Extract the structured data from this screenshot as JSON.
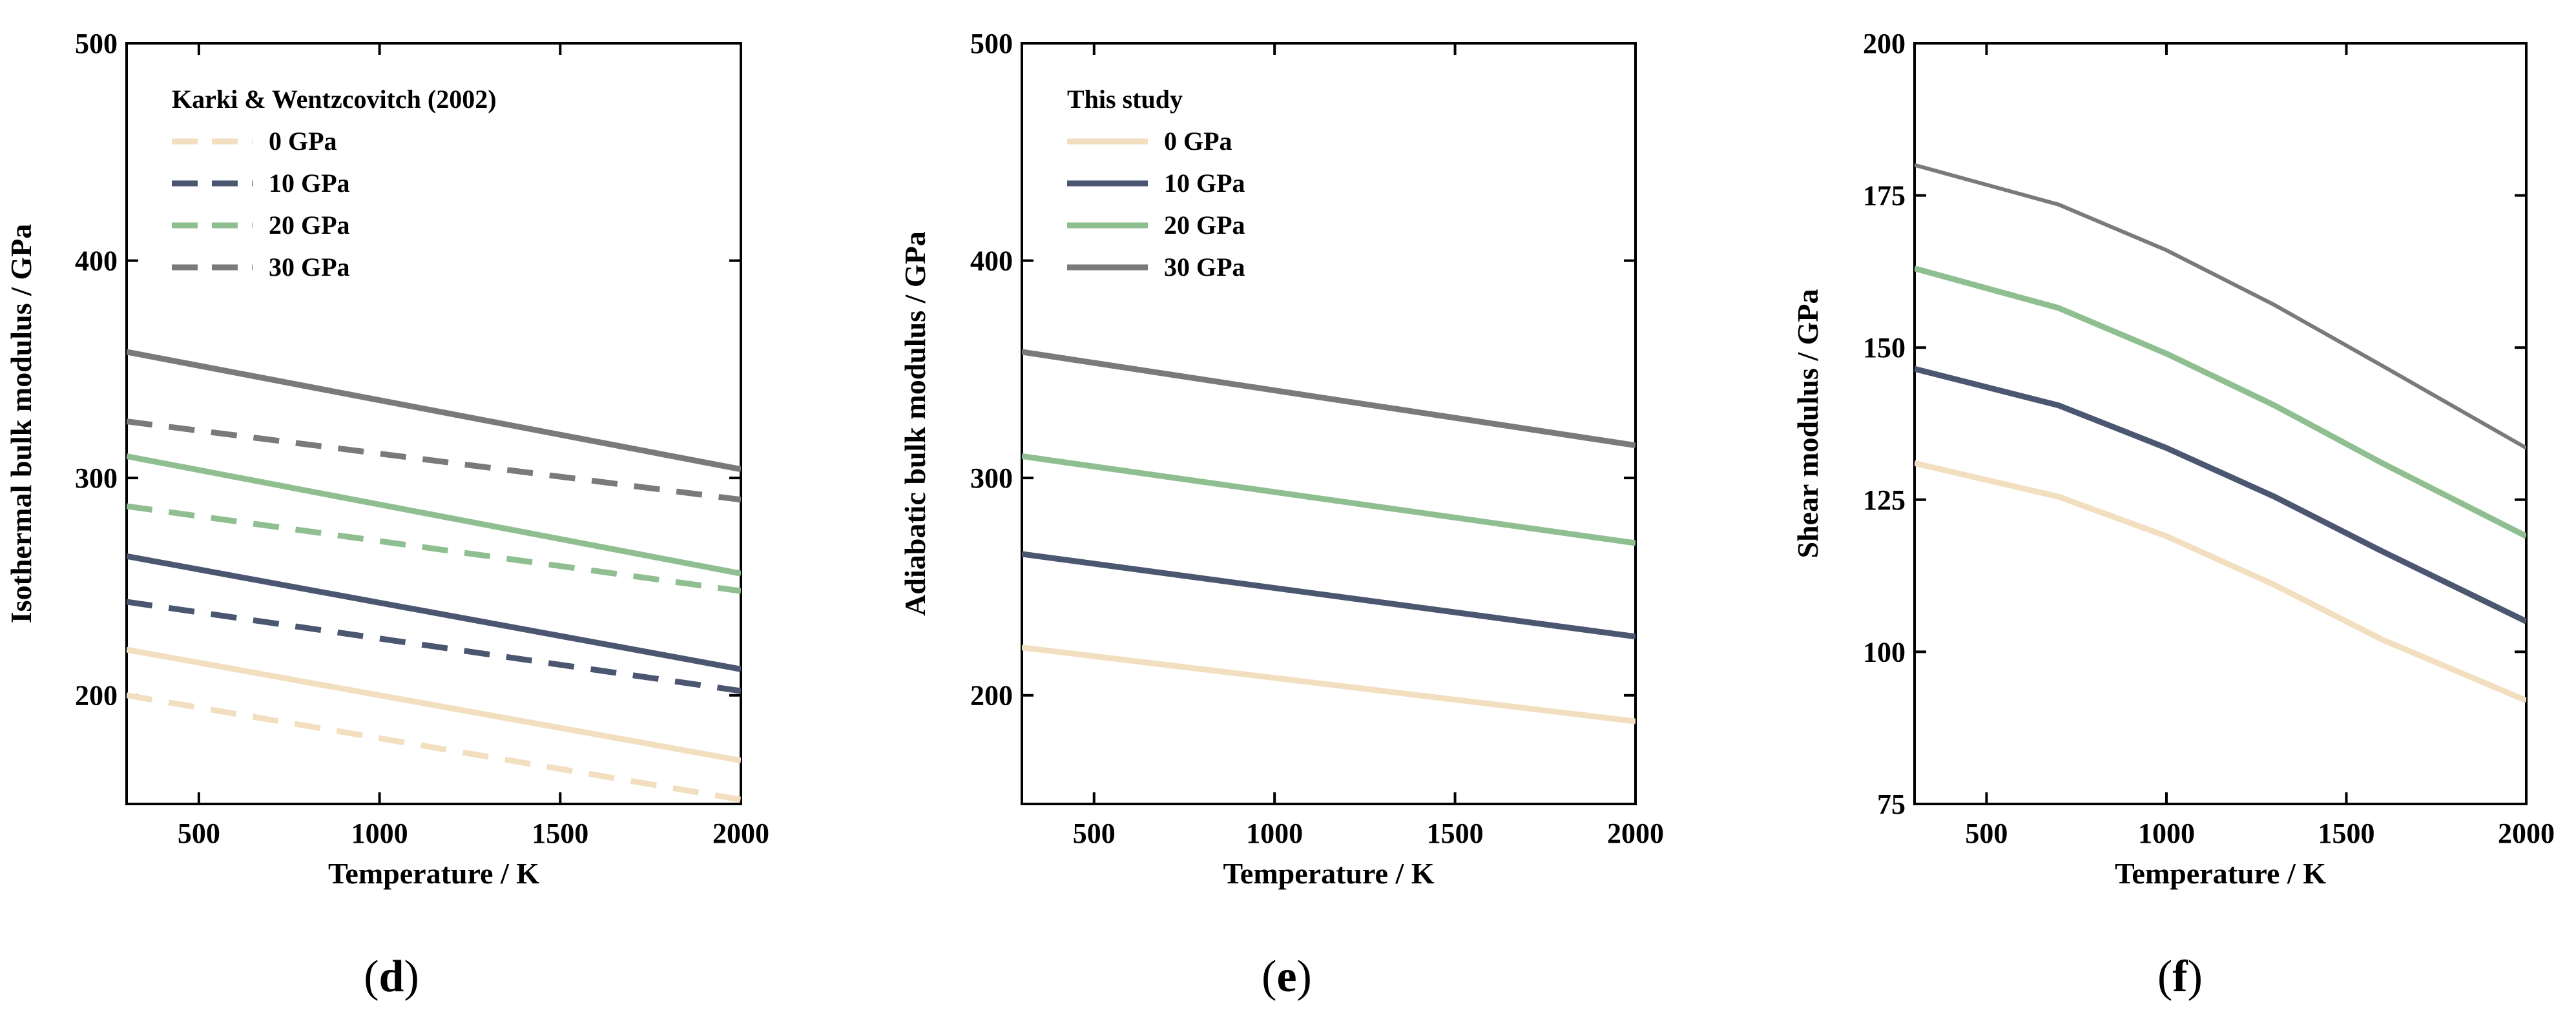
{
  "chart_data": [
    {
      "type": "line",
      "panel": "(d)",
      "panel_letter": "d",
      "xlabel": "Temperature / K",
      "ylabel": "Isothermal bulk modulus / GPa",
      "xlim": [
        300,
        2000
      ],
      "ylim": [
        150,
        500
      ],
      "xticks": [
        500,
        1000,
        1500,
        2000
      ],
      "yticks": [
        200,
        300,
        400,
        500
      ],
      "legend_title": "Karki & Wentzcovitch (2002)",
      "legend_dashed": true,
      "series": [
        {
          "name": "0 GPa",
          "style": "solid",
          "color": "#f2dfc0",
          "x": [
            300,
            2000
          ],
          "y": [
            221,
            170
          ],
          "in_legend": false
        },
        {
          "name": "10 GPa",
          "style": "solid",
          "color": "#4b5670",
          "x": [
            300,
            2000
          ],
          "y": [
            264,
            212
          ],
          "in_legend": false
        },
        {
          "name": "20 GPa",
          "style": "solid",
          "color": "#8fbf90",
          "x": [
            300,
            2000
          ],
          "y": [
            310,
            256
          ],
          "in_legend": false
        },
        {
          "name": "30 GPa",
          "style": "solid",
          "color": "#7a7a7a",
          "x": [
            300,
            2000
          ],
          "y": [
            358,
            304
          ],
          "in_legend": false
        },
        {
          "name": "0 GPa",
          "style": "dashed",
          "color": "#f2dfc0",
          "x": [
            300,
            2000
          ],
          "y": [
            200,
            152
          ],
          "in_legend": true
        },
        {
          "name": "10 GPa",
          "style": "dashed",
          "color": "#4b5670",
          "x": [
            300,
            2000
          ],
          "y": [
            243,
            202
          ],
          "in_legend": true
        },
        {
          "name": "20 GPa",
          "style": "dashed",
          "color": "#8fbf90",
          "x": [
            300,
            2000
          ],
          "y": [
            287,
            248
          ],
          "in_legend": true
        },
        {
          "name": "30 GPa",
          "style": "dashed",
          "color": "#7a7a7a",
          "x": [
            300,
            2000
          ],
          "y": [
            326,
            290
          ],
          "in_legend": true
        }
      ]
    },
    {
      "type": "line",
      "panel": "(e)",
      "panel_letter": "e",
      "xlabel": "Temperature / K",
      "ylabel": "Adiabatic bulk modulus / GPa",
      "xlim": [
        300,
        2000
      ],
      "ylim": [
        150,
        500
      ],
      "xticks": [
        500,
        1000,
        1500,
        2000
      ],
      "yticks": [
        200,
        300,
        400,
        500
      ],
      "legend_title": "This study",
      "legend_dashed": false,
      "series": [
        {
          "name": "0 GPa",
          "style": "solid",
          "color": "#f2dfc0",
          "x": [
            300,
            2000
          ],
          "y": [
            222,
            188
          ],
          "in_legend": true
        },
        {
          "name": "10 GPa",
          "style": "solid",
          "color": "#4b5670",
          "x": [
            300,
            2000
          ],
          "y": [
            265,
            227
          ],
          "in_legend": true
        },
        {
          "name": "20 GPa",
          "style": "solid",
          "color": "#8fbf90",
          "x": [
            300,
            2000
          ],
          "y": [
            310,
            270
          ],
          "in_legend": true
        },
        {
          "name": "30 GPa",
          "style": "solid",
          "color": "#7a7a7a",
          "x": [
            300,
            2000
          ],
          "y": [
            358,
            315
          ],
          "in_legend": true
        }
      ]
    },
    {
      "type": "line",
      "panel": "(f)",
      "panel_letter": "f",
      "xlabel": "Temperature / K",
      "ylabel": "Shear modulus / GPa",
      "xlim": [
        300,
        2000
      ],
      "ylim": [
        75,
        200
      ],
      "xticks": [
        500,
        1000,
        1500,
        2000
      ],
      "yticks": [
        75,
        100,
        125,
        150,
        175,
        200
      ],
      "legend_title": "",
      "legend_dashed": false,
      "series": [
        {
          "name": "0 GPa",
          "style": "solid",
          "color": "#f2dfc0",
          "x": [
            300,
            700,
            1000,
            1300,
            1600,
            2000
          ],
          "y": [
            131,
            125.5,
            119,
            111,
            102,
            92
          ],
          "in_legend": false
        },
        {
          "name": "10 GPa",
          "style": "solid",
          "color": "#4b5670",
          "x": [
            300,
            700,
            1000,
            1300,
            1600,
            2000
          ],
          "y": [
            146.5,
            140.5,
            133.5,
            125.5,
            116.5,
            105
          ],
          "in_legend": false
        },
        {
          "name": "20 GPa",
          "style": "solid",
          "color": "#8fbf90",
          "x": [
            300,
            700,
            1000,
            1300,
            1600,
            2000
          ],
          "y": [
            163,
            156.5,
            149,
            140.5,
            131,
            119
          ],
          "in_legend": false
        },
        {
          "name": "30 GPa",
          "style": "solid",
          "color": "#7a7a7a",
          "x": [
            300,
            700,
            1000,
            1300,
            1600,
            2000
          ],
          "y": [
            180,
            173.5,
            166,
            157,
            147,
            133.5
          ],
          "in_legend": false
        }
      ]
    }
  ]
}
